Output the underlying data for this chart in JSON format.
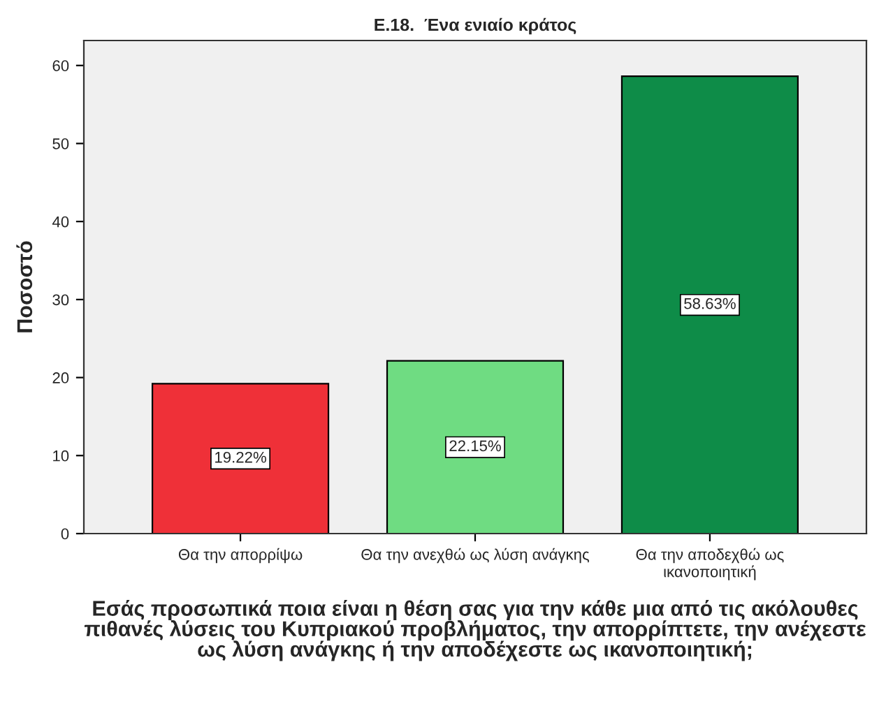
{
  "chart_data": {
    "type": "bar",
    "title": "E.18.  Ένα ενιαίο κράτος",
    "xlabel": "Εσάς προσωπικά ποια είναι η θέση σας για την κάθε μια από τις ακόλουθες\nπιθανές λύσεις του Κυπριακού προβλήματος, την απορρίπτετε, την ανέχεστε\nως λύση ανάγκης ή την αποδέχεστε ως ικανοποιητική;",
    "ylabel": "Ποσοστό",
    "categories": [
      "Θα την απορρίψω",
      "Θα την ανεχθώ ως λύση ανάγκης",
      "Θα την αποδεχθώ ως\nικανοποιητική"
    ],
    "values": [
      19.22,
      22.15,
      58.63
    ],
    "colors": [
      "#ef3038",
      "#6fdc82",
      "#0e8c48"
    ],
    "value_labels": [
      "19.22%",
      "22.15%",
      "58.63%"
    ],
    "ylim": [
      0,
      63.2
    ],
    "yticks": [
      0,
      10,
      20,
      30,
      40,
      50,
      60
    ],
    "grid": false,
    "legend": false
  }
}
